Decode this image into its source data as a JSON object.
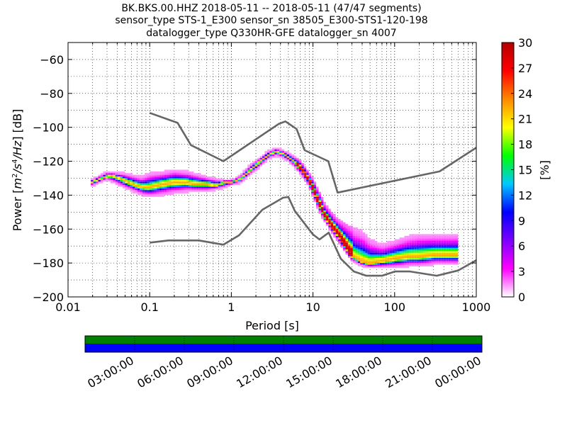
{
  "chart_data": {
    "type": "heatmap",
    "title_lines": [
      "BK.BKS.00.HHZ   2018-05-11 -- 2018-05-11  (47/47 segments)",
      "sensor_type STS-1_E300 sensor_sn 38505_E300-STS1-120-198",
      "datalogger_type Q330HR-GFE datalogger_sn 4007"
    ],
    "xlabel": "Period [s]",
    "ylabel_parts": [
      "Power [",
      "m",
      "2",
      "/",
      "s",
      "4",
      "/",
      "Hz",
      "] [dB]"
    ],
    "x_scale": "log",
    "xlim": [
      0.01,
      1000
    ],
    "ylim": [
      -200,
      -50
    ],
    "x_ticks": [
      {
        "value": 0.01,
        "label": "0.01"
      },
      {
        "value": 0.1,
        "label": "0.1"
      },
      {
        "value": 1,
        "label": "1"
      },
      {
        "value": 10,
        "label": "10"
      },
      {
        "value": 100,
        "label": "100"
      },
      {
        "value": 1000,
        "label": "1000"
      }
    ],
    "y_ticks": [
      {
        "value": -60,
        "label": "−60"
      },
      {
        "value": -80,
        "label": "−80"
      },
      {
        "value": -100,
        "label": "−100"
      },
      {
        "value": -120,
        "label": "−120"
      },
      {
        "value": -140,
        "label": "−140"
      },
      {
        "value": -160,
        "label": "−160"
      },
      {
        "value": -180,
        "label": "−180"
      },
      {
        "value": -200,
        "label": "−200"
      }
    ],
    "grid": "dotted",
    "noise_models": [
      {
        "name": "upper",
        "x": [
          0.1,
          0.22,
          0.32,
          0.8,
          3.8,
          4.6,
          6.3,
          7.9,
          15.4,
          20,
          354.8,
          1000
        ],
        "y": [
          -91.5,
          -97.4,
          -110.5,
          -120,
          -98,
          -96.5,
          -101,
          -113.5,
          -120,
          -138.5,
          -126,
          -112
        ]
      },
      {
        "name": "lower",
        "x": [
          0.1,
          0.17,
          0.4,
          0.8,
          1.24,
          2.4,
          4.3,
          5.0,
          6.0,
          10,
          12,
          15.6,
          21.9,
          31.6,
          45,
          70,
          101,
          154,
          328,
          600,
          1000
        ],
        "y": [
          -168,
          -166.7,
          -166.7,
          -169.2,
          -163.7,
          -148.6,
          -141.5,
          -141.1,
          -149.3,
          -163.2,
          -166.1,
          -162.1,
          -177.5,
          -185,
          -187.5,
          -187.5,
          -185,
          -185,
          -187.5,
          -184.4,
          -178.4
        ]
      }
    ],
    "psd_mode": {
      "x": [
        0.019,
        0.022,
        0.028,
        0.035,
        0.045,
        0.055,
        0.07,
        0.085,
        0.1,
        0.12,
        0.15,
        0.2,
        0.28,
        0.35,
        0.5,
        0.65,
        0.8,
        1.0,
        1.3,
        1.7,
        2.2,
        2.8,
        3.5,
        4.2,
        5.0,
        6.0,
        7.2,
        8.5,
        10,
        12,
        14,
        17,
        20,
        24,
        28,
        33,
        40,
        50,
        60,
        80,
        100,
        150,
        200,
        300,
        400,
        500,
        600
      ],
      "y": [
        -133,
        -132,
        -130,
        -129,
        -131,
        -133,
        -135,
        -136,
        -136,
        -135,
        -134,
        -133,
        -133,
        -134,
        -134,
        -135,
        -133,
        -133,
        -131,
        -126,
        -121,
        -117,
        -115,
        -116,
        -118,
        -121,
        -125,
        -130,
        -137,
        -146,
        -153,
        -159,
        -163,
        -169,
        -175,
        -178,
        -180,
        -181,
        -180,
        -179,
        -178,
        -177,
        -177,
        -176,
        -176,
        -176,
        -176
      ]
    },
    "psd_envelope": {
      "x": [
        0.019,
        0.03,
        0.05,
        0.08,
        0.1,
        0.15,
        0.2,
        0.3,
        0.5,
        0.8,
        1.0,
        1.3,
        1.7,
        2.2,
        2.8,
        3.5,
        4.2,
        5.0,
        6.0,
        7.2,
        8.5,
        10,
        12,
        14,
        17,
        20,
        25,
        30,
        40,
        50,
        70,
        100,
        150,
        200,
        300,
        400,
        500,
        600
      ],
      "upper": [
        -132,
        -127,
        -128,
        -130,
        -128,
        -127,
        -126,
        -127,
        -130,
        -132,
        -132,
        -129,
        -123,
        -119,
        -115,
        -113,
        -114,
        -116,
        -118,
        -121,
        -126,
        -131,
        -139,
        -146,
        -151,
        -155,
        -158,
        -160,
        -162,
        -167,
        -170,
        -168,
        -165,
        -164,
        -164,
        -164,
        -164,
        -164
      ],
      "lower": [
        -135,
        -131,
        -136,
        -140,
        -141,
        -140,
        -139,
        -138,
        -138,
        -136,
        -134,
        -133,
        -128,
        -124,
        -119,
        -117,
        -118,
        -120,
        -124,
        -128,
        -133,
        -141,
        -150,
        -156,
        -162,
        -167,
        -174,
        -179,
        -182,
        -183,
        -183,
        -183,
        -182,
        -182,
        -181,
        -181,
        -181,
        -181
      ]
    },
    "colorbar": {
      "label": "[%]",
      "min": 0,
      "max": 30,
      "ticks": [
        {
          "value": 0,
          "label": "0"
        },
        {
          "value": 3,
          "label": "3"
        },
        {
          "value": 6,
          "label": "6"
        },
        {
          "value": 9,
          "label": "9"
        },
        {
          "value": 12,
          "label": "12"
        },
        {
          "value": 15,
          "label": "15"
        },
        {
          "value": 18,
          "label": "18"
        },
        {
          "value": 21,
          "label": "21"
        },
        {
          "value": 24,
          "label": "24"
        },
        {
          "value": 27,
          "label": "27"
        },
        {
          "value": 30,
          "label": "30"
        }
      ],
      "stops": [
        "#ffffff",
        "#ff00ff",
        "#7b00ff",
        "#0000ff",
        "#00c8ff",
        "#00ff00",
        "#ffff00",
        "#ff8800",
        "#ff0000",
        "#b30000"
      ]
    },
    "coverage": {
      "time_labels": [
        "03:00:00",
        "06:00:00",
        "09:00:00",
        "12:00:00",
        "15:00:00",
        "18:00:00",
        "21:00:00",
        "00:00:00"
      ],
      "colors": {
        "top": "#008000",
        "bottom": "#0000ff"
      }
    },
    "colors": {
      "noise_model": "#666666",
      "grid": "#000000"
    }
  }
}
